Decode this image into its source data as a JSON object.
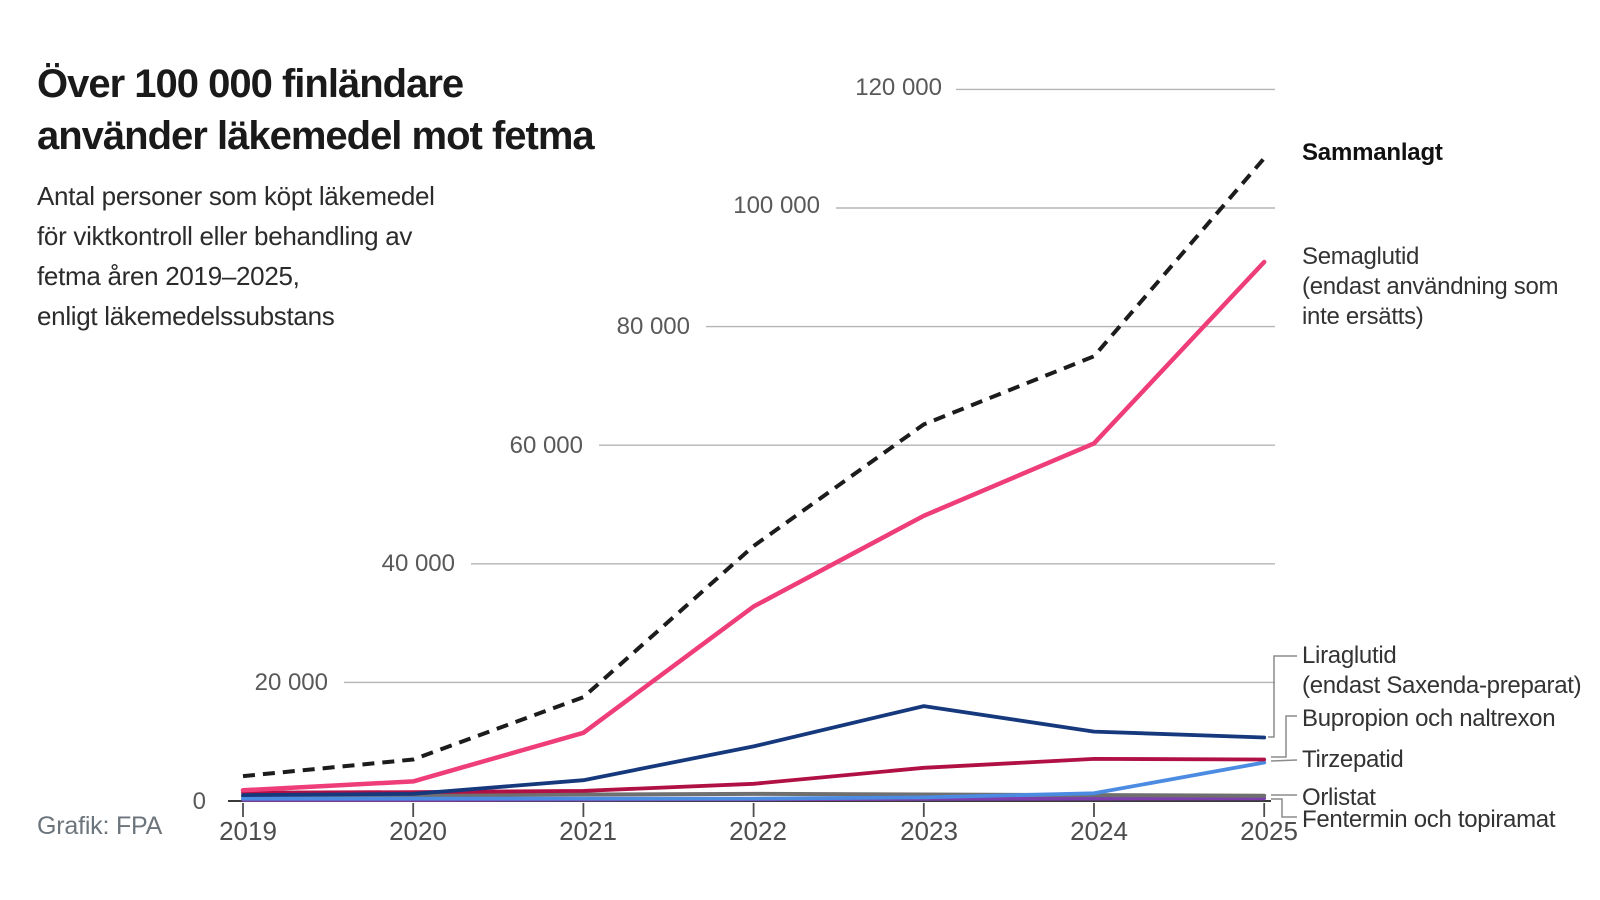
{
  "header": {
    "title_lines": [
      "Över 100 000 finländare",
      "använder läkemedel mot fetma"
    ],
    "subtitle_lines": [
      "Antal personer som köpt läkemedel",
      "för viktkontroll eller behandling av",
      "fetma åren 2019–2025,",
      "enligt läkemedelssubstans"
    ]
  },
  "source": "Grafik: FPA",
  "chart_data": {
    "type": "line",
    "x": [
      2019,
      2020,
      2021,
      2022,
      2023,
      2024,
      2025
    ],
    "xlabel": "",
    "ylabel": "",
    "ylim": [
      0,
      120000
    ],
    "grid": "horizontal gridlines, trimmed staircase-left, labels inline left of each line",
    "legend_position": "right of line ends, connected with thin leader lines",
    "yticks": [
      {
        "value": 0,
        "label": "0"
      },
      {
        "value": 20000,
        "label": "20 000"
      },
      {
        "value": 40000,
        "label": "40 000"
      },
      {
        "value": 60000,
        "label": "60 000"
      },
      {
        "value": 80000,
        "label": "80 000"
      },
      {
        "value": 100000,
        "label": "100 000"
      },
      {
        "value": 120000,
        "label": "120 000"
      }
    ],
    "series": [
      {
        "name": "Sammanlagt",
        "label_lines": [
          "Sammanlagt"
        ],
        "color": "#1c1c1c",
        "style": "dashed",
        "values": [
          4200,
          7000,
          17500,
          43000,
          63500,
          75000,
          108400
        ]
      },
      {
        "name": "Semaglutid (endast användning som inte ersätts)",
        "label_lines": [
          "Semaglutid",
          "(endast användning som",
          "inte ersätts)"
        ],
        "color": "#ee3d78",
        "style": "solid",
        "values": [
          1800,
          3300,
          11500,
          32800,
          48100,
          60300,
          90900
        ]
      },
      {
        "name": "Liraglutid (endast Saxenda-preparat)",
        "label_lines": [
          "Liraglutid",
          "(endast Saxenda-preparat)"
        ],
        "color": "#16387c",
        "style": "solid",
        "values": [
          1000,
          1200,
          3500,
          9200,
          16000,
          11700,
          10700
        ]
      },
      {
        "name": "Bupropion och naltrexon",
        "label_lines": [
          "Bupropion och naltrexon"
        ],
        "color": "#b01044",
        "style": "solid",
        "values": [
          1400,
          1500,
          1700,
          2900,
          5600,
          7100,
          7000
        ]
      },
      {
        "name": "Tirzepatid",
        "label_lines": [
          "Tirzepatid"
        ],
        "color": "#4c8be2",
        "style": "solid",
        "values": [
          400,
          400,
          400,
          400,
          600,
          1300,
          6500
        ]
      },
      {
        "name": "Orlistat",
        "label_lines": [
          "Orlistat"
        ],
        "color": "#6f6f6f",
        "style": "solid",
        "values": [
          800,
          900,
          1100,
          1200,
          1100,
          1000,
          900
        ]
      },
      {
        "name": "Fentermin och topiramat",
        "label_lines": [
          "Fentermin och topiramat"
        ],
        "color": "#7e3fae",
        "style": "solid",
        "values": [
          200,
          200,
          250,
          300,
          350,
          400,
          450
        ]
      }
    ]
  }
}
